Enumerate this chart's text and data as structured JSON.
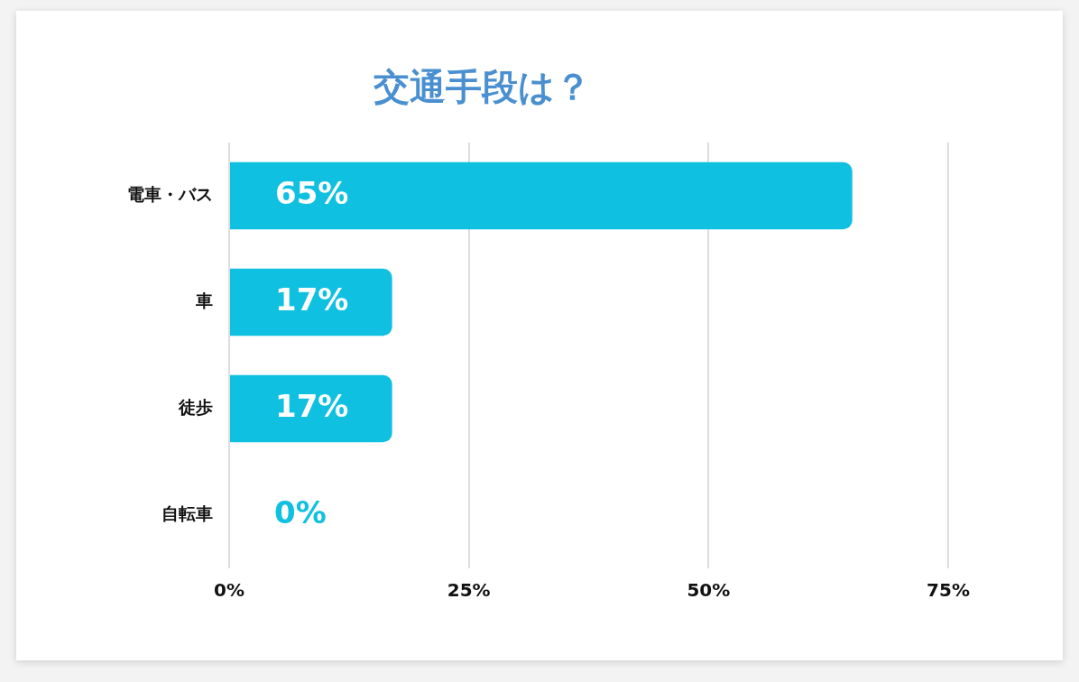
{
  "chart_data": {
    "type": "bar",
    "orientation": "horizontal",
    "title": "交通手段は？",
    "categories": [
      "電車・バス",
      "車",
      "徒歩",
      "自転車"
    ],
    "values": [
      65,
      17,
      17,
      0
    ],
    "color": "#0fc0e0",
    "value_labels": [
      "65%",
      "17%",
      "17%",
      "0%"
    ],
    "xlim": [
      0,
      75
    ],
    "xticks": [
      {
        "value": 0,
        "label": "0%"
      },
      {
        "value": 25,
        "label": "25%"
      },
      {
        "value": 50,
        "label": "50%"
      },
      {
        "value": 75,
        "label": "75%"
      }
    ],
    "grid": "x"
  }
}
